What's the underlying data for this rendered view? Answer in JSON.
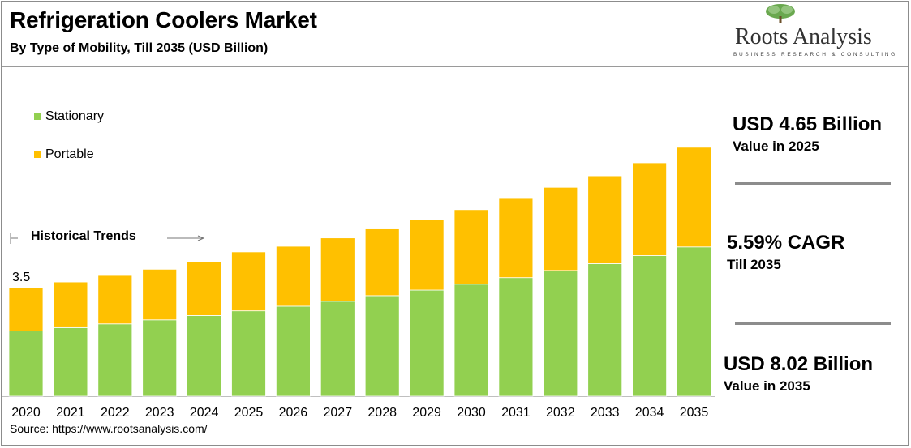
{
  "header": {
    "title": "Refrigeration Coolers Market",
    "subtitle": "By Type of Mobility, Till 2035 (USD Billion)"
  },
  "logo": {
    "name": "Roots Analysis",
    "tagline": "BUSINESS RESEARCH & CONSULTING"
  },
  "colors": {
    "stationary": "#92d050",
    "portable": "#ffc000",
    "rule": "#8c8c8c"
  },
  "annotations": {
    "historical_trends": "Historical Trends",
    "first_bar_label": "3.5"
  },
  "kpis": [
    {
      "big": "USD 4.65 Billion",
      "small": "Value in 2025"
    },
    {
      "big": "5.59% CAGR",
      "small": "Till 2035"
    },
    {
      "big": "USD 8.02 Billion",
      "small": "Value in 2035"
    }
  ],
  "source": "Source: https://www.rootsanalysis.com/",
  "chart_data": {
    "type": "bar",
    "stacked": true,
    "title": "Refrigeration Coolers Market",
    "categories": [
      "2020",
      "2021",
      "2022",
      "2023",
      "2024",
      "2025",
      "2026",
      "2027",
      "2028",
      "2029",
      "2030",
      "2031",
      "2032",
      "2033",
      "2034",
      "2035"
    ],
    "series": [
      {
        "name": "Stationary",
        "color": "#92d050",
        "values": [
          2.1,
          2.21,
          2.33,
          2.46,
          2.6,
          2.75,
          2.9,
          3.06,
          3.24,
          3.42,
          3.61,
          3.82,
          4.05,
          4.27,
          4.53,
          4.81
        ]
      },
      {
        "name": "Portable",
        "color": "#ffc000",
        "values": [
          1.4,
          1.47,
          1.56,
          1.63,
          1.72,
          1.9,
          1.93,
          2.04,
          2.15,
          2.28,
          2.4,
          2.55,
          2.68,
          2.83,
          2.99,
          3.21
        ]
      }
    ],
    "data_labels": [
      {
        "category": "2020",
        "text": "3.5"
      }
    ],
    "ylim": [
      0,
      8.5
    ],
    "legend": "top-left",
    "grid": false
  }
}
